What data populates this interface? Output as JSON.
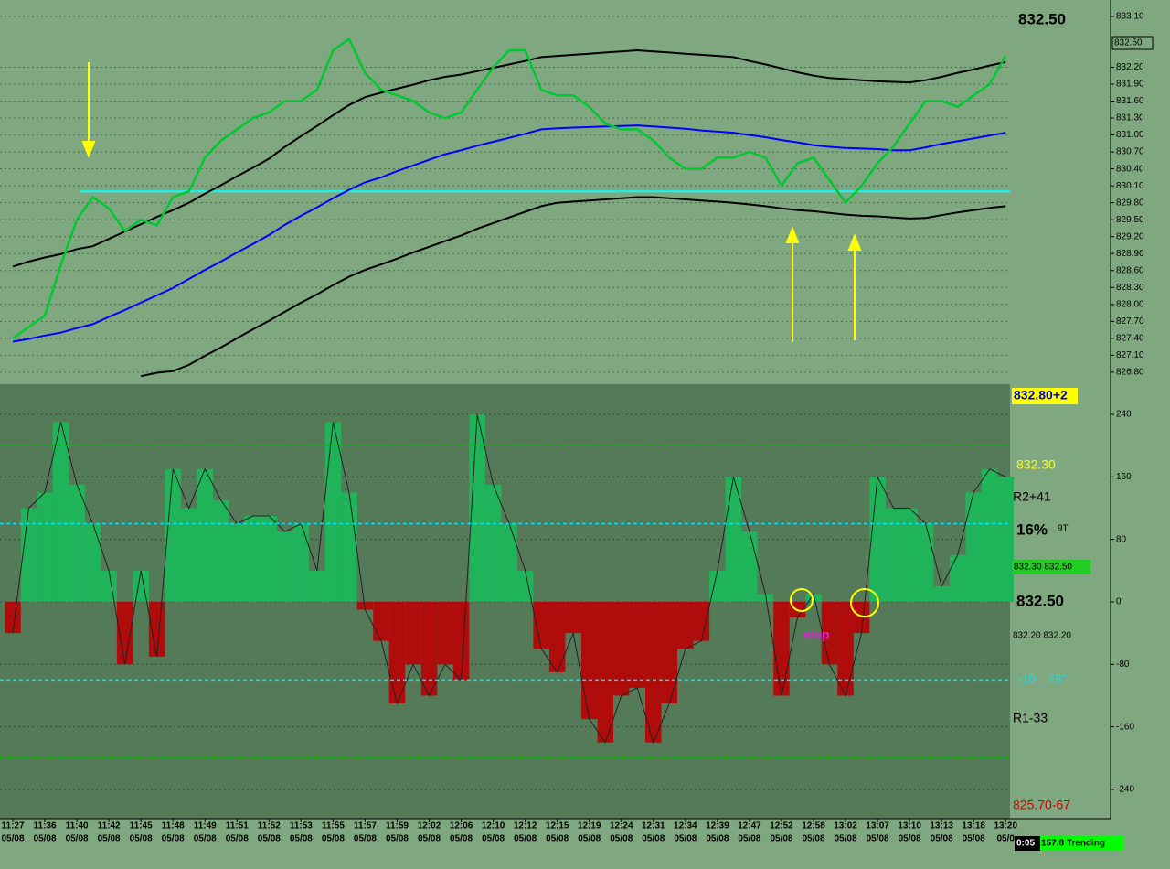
{
  "chart_data": [
    {
      "type": "line",
      "ylim": [
        826.62,
        833.39
      ],
      "yticks": [
        {
          "value": 833.1,
          "label": "833.10"
        },
        {
          "value": 832.2,
          "label": "832.20"
        },
        {
          "value": 831.9,
          "label": "831.90"
        },
        {
          "value": 831.6,
          "label": "831.60"
        },
        {
          "value": 831.3,
          "label": "831.30"
        },
        {
          "value": 831.0,
          "label": "831.00"
        },
        {
          "value": 830.7,
          "label": "830.70"
        },
        {
          "value": 830.4,
          "label": "830.40"
        },
        {
          "value": 830.1,
          "label": "830.10"
        },
        {
          "value": 829.8,
          "label": "829.80"
        },
        {
          "value": 829.5,
          "label": "829.50"
        },
        {
          "value": 829.2,
          "label": "829.20"
        },
        {
          "value": 828.9,
          "label": "828.90"
        },
        {
          "value": 828.6,
          "label": "828.60"
        },
        {
          "value": 828.3,
          "label": "828.30"
        },
        {
          "value": 828.0,
          "label": "828.00"
        },
        {
          "value": 827.7,
          "label": "827.70"
        },
        {
          "value": 827.4,
          "label": "827.40"
        },
        {
          "value": 827.1,
          "label": "827.10"
        },
        {
          "value": 826.8,
          "label": "826.80"
        }
      ],
      "grid": true,
      "level": 830.0,
      "level_color": "#00ffff",
      "series": [
        {
          "color": "#000000",
          "values": [
            828.67,
            828.76,
            828.83,
            828.89,
            828.98,
            829.03,
            829.16,
            829.29,
            829.42,
            829.55,
            829.67,
            829.8,
            829.96,
            830.11,
            830.27,
            830.42,
            830.58,
            830.79,
            830.98,
            831.16,
            831.35,
            831.53,
            831.67,
            831.75,
            831.82,
            831.89,
            831.97,
            832.03,
            832.07,
            832.13,
            832.19,
            832.25,
            832.31,
            832.38,
            832.4,
            832.42,
            832.44,
            832.46,
            832.48,
            832.5,
            832.48,
            832.46,
            832.44,
            832.42,
            832.4,
            832.38,
            832.31,
            832.25,
            832.18,
            832.11,
            832.05,
            832.01,
            831.99,
            831.97,
            831.95,
            831.94,
            831.93,
            831.97,
            832.03,
            832.1,
            832.16,
            832.23,
            832.29
          ]
        },
        {
          "color": "#0000ff",
          "values": [
            827.34,
            827.39,
            827.45,
            827.5,
            827.58,
            827.65,
            827.78,
            827.9,
            828.03,
            828.16,
            828.29,
            828.45,
            828.61,
            828.76,
            828.92,
            829.07,
            829.23,
            829.41,
            829.57,
            829.72,
            829.88,
            830.03,
            830.16,
            830.25,
            830.36,
            830.46,
            830.56,
            830.66,
            830.73,
            830.81,
            830.88,
            830.95,
            831.02,
            831.1,
            831.12,
            831.13,
            831.14,
            831.15,
            831.16,
            831.17,
            831.15,
            831.13,
            831.11,
            831.08,
            831.06,
            831.04,
            831.0,
            830.96,
            830.91,
            830.87,
            830.82,
            830.79,
            830.77,
            830.76,
            830.75,
            830.73,
            830.73,
            830.78,
            830.84,
            830.89,
            830.94,
            830.99,
            831.04
          ]
        },
        {
          "color": "#000000",
          "values": [
            null,
            null,
            null,
            null,
            null,
            null,
            null,
            null,
            826.73,
            826.79,
            826.82,
            826.93,
            827.09,
            827.24,
            827.4,
            827.56,
            827.71,
            827.87,
            828.03,
            828.18,
            828.34,
            828.49,
            828.61,
            828.71,
            828.81,
            828.92,
            829.02,
            829.12,
            829.22,
            829.34,
            829.44,
            829.54,
            829.64,
            829.74,
            829.8,
            829.82,
            829.84,
            829.86,
            829.88,
            829.9,
            829.9,
            829.88,
            829.86,
            829.84,
            829.82,
            829.8,
            829.77,
            829.74,
            829.7,
            829.67,
            829.65,
            829.62,
            829.59,
            829.57,
            829.56,
            829.54,
            829.52,
            829.53,
            829.58,
            829.63,
            829.67,
            829.71,
            829.74
          ]
        },
        {
          "color": "#00c832",
          "values": [
            827.4,
            827.6,
            827.8,
            828.7,
            829.5,
            829.9,
            829.7,
            829.3,
            829.5,
            829.4,
            829.9,
            830.0,
            830.6,
            830.9,
            831.1,
            831.3,
            831.4,
            831.6,
            831.6,
            831.8,
            832.5,
            832.7,
            832.1,
            831.8,
            831.7,
            831.6,
            831.4,
            831.3,
            831.4,
            831.8,
            832.2,
            832.5,
            832.5,
            831.8,
            831.7,
            831.7,
            831.5,
            831.2,
            831.1,
            831.1,
            830.9,
            830.6,
            830.4,
            830.4,
            830.6,
            830.6,
            830.7,
            830.6,
            830.1,
            830.5,
            830.6,
            830.2,
            829.8,
            830.1,
            830.5,
            830.8,
            831.2,
            831.6,
            831.6,
            831.5,
            831.7,
            831.9,
            832.4
          ]
        }
      ]
    },
    {
      "type": "bar",
      "categories": [
        "11:27",
        null,
        "11:36",
        null,
        "11:40",
        null,
        "11:42",
        null,
        "11:45",
        null,
        "11:48",
        null,
        "11:49",
        null,
        "11:51",
        null,
        "11:52",
        null,
        "11:53",
        null,
        "11:55",
        null,
        "11:57",
        null,
        "11:59",
        null,
        "12:02",
        null,
        "12:06",
        null,
        "12:10",
        null,
        "12:12",
        null,
        "12:15",
        null,
        "12:19",
        null,
        "12:24",
        null,
        "12:31",
        null,
        "12:34",
        null,
        "12:39",
        null,
        "12:47",
        null,
        "12:52",
        null,
        "12:58",
        null,
        "13:02",
        null,
        "13:07",
        null,
        "13:10",
        null,
        "13:13",
        null,
        "13:18",
        null,
        "13:20"
      ],
      "dates": [
        "05/08",
        null,
        "05/08",
        null,
        "05/08",
        null,
        "05/08",
        null,
        "05/08",
        null,
        "05/08",
        null,
        "05/08",
        null,
        "05/08",
        null,
        "05/08",
        null,
        "05/08",
        null,
        "05/08",
        null,
        "05/08",
        null,
        "05/08",
        null,
        "05/08",
        null,
        "05/08",
        null,
        "05/08",
        null,
        "05/08",
        null,
        "05/08",
        null,
        "05/08",
        null,
        "05/08",
        null,
        "05/08",
        null,
        "05/08",
        null,
        "05/08",
        null,
        "05/08",
        null,
        "05/08",
        null,
        "05/08",
        null,
        "05/08",
        null,
        "05/08",
        null,
        "05/08",
        null,
        "05/08",
        null,
        "05/08",
        null,
        "05/0"
      ],
      "values": [
        -40,
        120,
        140,
        230,
        150,
        100,
        40,
        -80,
        40,
        -70,
        170,
        120,
        170,
        130,
        100,
        110,
        110,
        90,
        100,
        40,
        230,
        140,
        -10,
        -50,
        -130,
        -80,
        -120,
        -80,
        -100,
        240,
        150,
        100,
        40,
        -60,
        -90,
        -40,
        -150,
        -180,
        -120,
        -110,
        -180,
        -130,
        -60,
        -50,
        40,
        160,
        90,
        10,
        -120,
        -20,
        10,
        -80,
        -120,
        -40,
        160,
        120,
        120,
        100,
        20,
        60,
        140,
        170,
        160
      ],
      "color": "#1fb35a",
      "negative_color": "#b00c0c",
      "ylim": [
        -277.5,
        278.6
      ],
      "yticks": [
        240,
        160,
        80,
        0,
        -80,
        -160,
        -240
      ],
      "levels": [
        {
          "value": 200,
          "color": "#00c000"
        },
        {
          "value": 100,
          "color": "#00e5ff"
        },
        {
          "value": -100,
          "color": "#00e5ff"
        },
        {
          "value": -200,
          "color": "#00c000"
        }
      ]
    }
  ],
  "annotations": {
    "last_big": "832.50",
    "last_marker": "832.50",
    "upper": "832.80+2",
    "yellow": "832.30",
    "r2": "R2+41",
    "pct": "16%",
    "ticks": "9T",
    "pair_top": "832.30 832.50",
    "mid_big": "832.50",
    "pair_low": "832.20 832.20",
    "neg": "-10",
    "deg": "78°",
    "r1": "R1-33",
    "lower": "825.70-67",
    "stop": "stop",
    "timer": "0:05",
    "trend": "157.8 Trending"
  }
}
